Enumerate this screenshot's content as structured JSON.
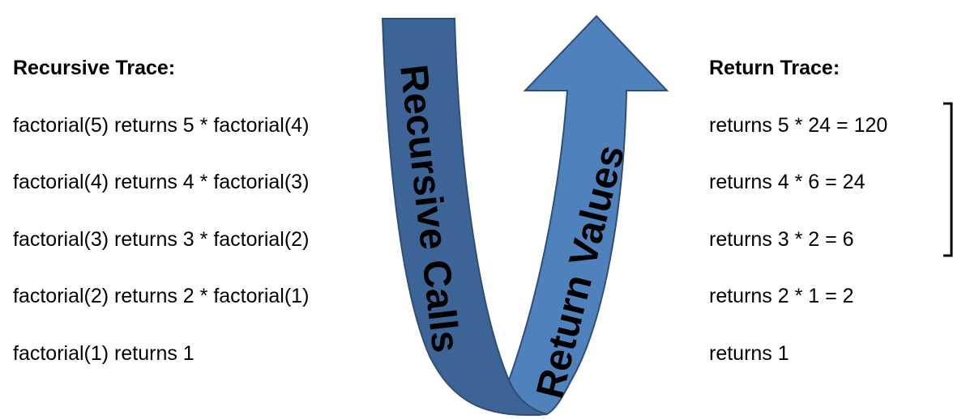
{
  "recursive_trace": {
    "heading": "Recursive Trace:",
    "rows": [
      "factorial(5) returns 5 * factorial(4)",
      "factorial(4) returns 4 * factorial(3)",
      "factorial(3) returns 3 * factorial(2)",
      "factorial(2) returns 2 * factorial(1)",
      "factorial(1) returns 1"
    ]
  },
  "return_trace": {
    "heading": "Return Trace:",
    "rows": [
      "returns 5 * 24 = 120",
      "returns 4 * 6 = 24",
      "returns 3 * 2 = 6",
      "returns 2 * 1 = 2",
      "returns 1"
    ]
  },
  "arrows": {
    "down_label": "Recursive Calls",
    "up_label": "Return Values",
    "down_color": "#3d6496",
    "up_color": "#4f81bd",
    "outline_color": "#2f4f75"
  }
}
